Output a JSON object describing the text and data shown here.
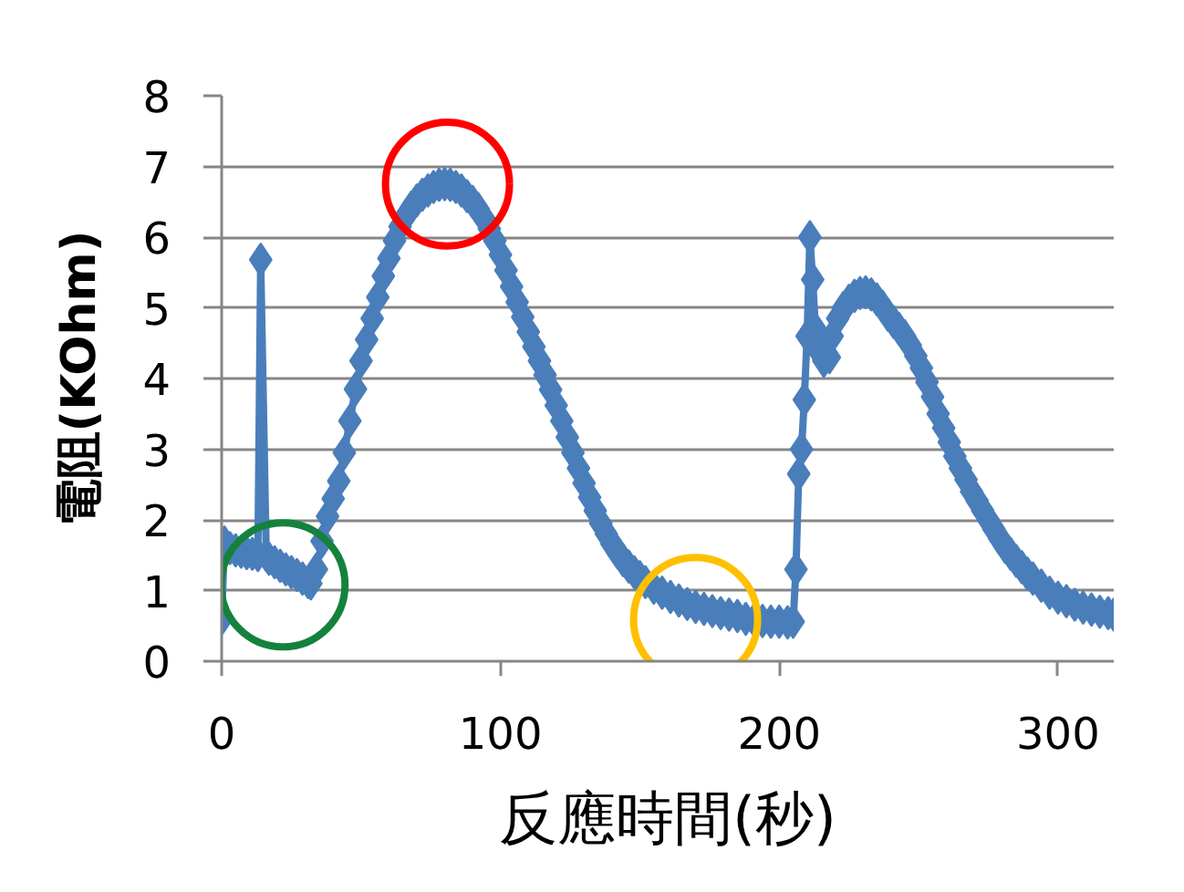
{
  "chart_data": {
    "type": "line",
    "xlabel": "反應時間(秒)",
    "ylabel": "電阻(KOhm)",
    "xlim": [
      0,
      320
    ],
    "xticks": [
      0,
      100,
      200,
      300
    ],
    "ylim": [
      0,
      8
    ],
    "yticks": [
      0,
      1,
      2,
      3,
      4,
      5,
      6,
      7,
      8
    ],
    "grid": "y",
    "marker": "diamond",
    "line_style": "solid",
    "series": [
      {
        "color": "#4a7ebb",
        "x": [
          0,
          1,
          3,
          5,
          7,
          9,
          11,
          13,
          14,
          16,
          17,
          19,
          21,
          23,
          25,
          27,
          29,
          31,
          32,
          34,
          36,
          38,
          40,
          42,
          44,
          46,
          48,
          50,
          52,
          54,
          56,
          58,
          60,
          62,
          64,
          66,
          68,
          70,
          72,
          74,
          76,
          78,
          80,
          82,
          84,
          86,
          88,
          90,
          92,
          94,
          96,
          98,
          100,
          102,
          104,
          106,
          108,
          110,
          112,
          114,
          116,
          118,
          120,
          122,
          124,
          126,
          128,
          130,
          132,
          134,
          136,
          138,
          140,
          142,
          144,
          146,
          148,
          150,
          152,
          155,
          158,
          161,
          164,
          167,
          170,
          173,
          176,
          179,
          182,
          185,
          188,
          191,
          194,
          197,
          200,
          203,
          205,
          206,
          207,
          208,
          209,
          210,
          211,
          212,
          213,
          214,
          216,
          218,
          219,
          221,
          223,
          225,
          227,
          229,
          231,
          233,
          235,
          237,
          239,
          241,
          243,
          245,
          247,
          249,
          251,
          253,
          255,
          257,
          259,
          261,
          263,
          265,
          267,
          269,
          271,
          273,
          275,
          277,
          279,
          281,
          283,
          285,
          287,
          289,
          291,
          294,
          297,
          300,
          303,
          306,
          309,
          312,
          315,
          318,
          320
        ],
        "values": [
          0.6,
          1.68,
          1.6,
          1.57,
          1.55,
          1.53,
          1.52,
          1.5,
          5.68,
          1.5,
          1.45,
          1.4,
          1.35,
          1.3,
          1.26,
          1.22,
          1.17,
          1.12,
          1.1,
          1.3,
          1.7,
          2.05,
          2.3,
          2.55,
          2.95,
          3.4,
          3.85,
          4.25,
          4.55,
          4.85,
          5.15,
          5.45,
          5.7,
          5.95,
          6.15,
          6.3,
          6.42,
          6.52,
          6.6,
          6.66,
          6.71,
          6.74,
          6.75,
          6.74,
          6.71,
          6.66,
          6.58,
          6.5,
          6.4,
          6.27,
          6.12,
          5.95,
          5.75,
          5.53,
          5.3,
          5.08,
          4.87,
          4.66,
          4.45,
          4.25,
          4.05,
          3.84,
          3.62,
          3.4,
          3.17,
          2.95,
          2.73,
          2.52,
          2.32,
          2.13,
          1.95,
          1.8,
          1.66,
          1.54,
          1.43,
          1.34,
          1.26,
          1.19,
          1.12,
          1.04,
          0.97,
          0.91,
          0.86,
          0.81,
          0.77,
          0.74,
          0.71,
          0.68,
          0.66,
          0.64,
          0.6,
          0.58,
          0.57,
          0.56,
          0.56,
          0.55,
          0.56,
          1.3,
          2.65,
          3.0,
          3.7,
          4.6,
          6.0,
          5.4,
          4.7,
          4.4,
          4.25,
          4.3,
          4.6,
          4.85,
          5.0,
          5.1,
          5.17,
          5.21,
          5.22,
          5.19,
          5.12,
          5.02,
          4.9,
          4.8,
          4.7,
          4.6,
          4.47,
          4.32,
          4.15,
          3.95,
          3.74,
          3.5,
          3.3,
          3.1,
          2.9,
          2.73,
          2.57,
          2.4,
          2.27,
          2.13,
          2.0,
          1.87,
          1.74,
          1.62,
          1.52,
          1.42,
          1.33,
          1.24,
          1.17,
          1.07,
          0.97,
          0.9,
          0.85,
          0.8,
          0.76,
          0.73,
          0.7,
          0.68,
          0.66
        ]
      },
      {
        "type": "scatter",
        "marker": "circle",
        "x": [
          22,
          81,
          170
        ],
        "values": [
          1.08,
          6.75,
          0.59
        ],
        "colors": [
          "#14823c",
          "#ff0000",
          "#ffc000"
        ]
      }
    ]
  }
}
